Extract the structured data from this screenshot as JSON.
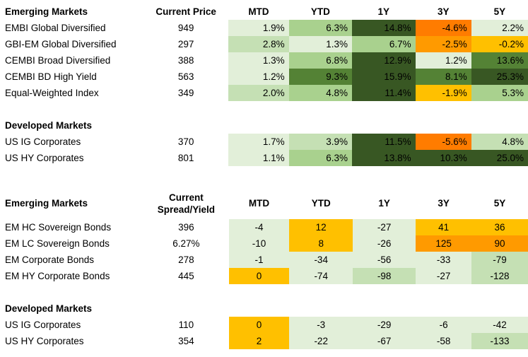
{
  "colors": {
    "pale_green": "#e2efd9",
    "light_green": "#c5e0b4",
    "mid_green": "#a9d18e",
    "dark_green": "#548235",
    "darkest_green": "#385723",
    "yellow": "#ffc000",
    "orange": "#ff7c00"
  },
  "returns": {
    "headers": [
      "Emerging Markets",
      "Current Price",
      "MTD",
      "YTD",
      "1Y",
      "3Y",
      "5Y"
    ],
    "em_rows": [
      {
        "name": "EMBI Global Diversified",
        "value": "949",
        "cells": [
          {
            "v": "1.9%",
            "c": "#e2efd9"
          },
          {
            "v": "6.3%",
            "c": "#a9d18e"
          },
          {
            "v": "14.8%",
            "c": "#385723"
          },
          {
            "v": "-4.6%",
            "c": "#ff7c00"
          },
          {
            "v": "2.2%",
            "c": "#e2efd9"
          }
        ]
      },
      {
        "name": "GBI-EM Global Diversified",
        "value": "297",
        "cells": [
          {
            "v": "2.8%",
            "c": "#c5e0b4"
          },
          {
            "v": "1.3%",
            "c": "#e2efd9"
          },
          {
            "v": "6.7%",
            "c": "#a9d18e"
          },
          {
            "v": "-2.5%",
            "c": "#ff9a00"
          },
          {
            "v": "-0.2%",
            "c": "#ffc000"
          }
        ]
      },
      {
        "name": "CEMBI Broad Diversified",
        "value": "388",
        "cells": [
          {
            "v": "1.3%",
            "c": "#e2efd9"
          },
          {
            "v": "6.8%",
            "c": "#a9d18e"
          },
          {
            "v": "12.9%",
            "c": "#385723"
          },
          {
            "v": "1.2%",
            "c": "#e2efd9"
          },
          {
            "v": "13.6%",
            "c": "#548235"
          }
        ]
      },
      {
        "name": "CEMBI BD High Yield",
        "value": "563",
        "cells": [
          {
            "v": "1.2%",
            "c": "#e2efd9"
          },
          {
            "v": "9.3%",
            "c": "#548235"
          },
          {
            "v": "15.9%",
            "c": "#385723"
          },
          {
            "v": "8.1%",
            "c": "#548235"
          },
          {
            "v": "25.3%",
            "c": "#385723"
          }
        ]
      },
      {
        "name": "Equal-Weighted Index",
        "value": "349",
        "cells": [
          {
            "v": "2.0%",
            "c": "#c5e0b4"
          },
          {
            "v": "4.8%",
            "c": "#a9d18e"
          },
          {
            "v": "11.4%",
            "c": "#385723"
          },
          {
            "v": "-1.9%",
            "c": "#ffc000"
          },
          {
            "v": "5.3%",
            "c": "#a9d18e"
          }
        ]
      }
    ],
    "dm_header": "Developed Markets",
    "dm_rows": [
      {
        "name": "US IG Corporates",
        "value": "370",
        "cells": [
          {
            "v": "1.7%",
            "c": "#e2efd9"
          },
          {
            "v": "3.9%",
            "c": "#c5e0b4"
          },
          {
            "v": "11.5%",
            "c": "#385723"
          },
          {
            "v": "-5.6%",
            "c": "#ff7c00"
          },
          {
            "v": "4.8%",
            "c": "#c5e0b4"
          }
        ]
      },
      {
        "name": "US HY Corporates",
        "value": "801",
        "cells": [
          {
            "v": "1.1%",
            "c": "#e2efd9"
          },
          {
            "v": "6.3%",
            "c": "#a9d18e"
          },
          {
            "v": "13.8%",
            "c": "#385723"
          },
          {
            "v": "10.3%",
            "c": "#385723"
          },
          {
            "v": "25.0%",
            "c": "#385723"
          }
        ]
      }
    ]
  },
  "spreads": {
    "headers": [
      "Emerging Markets",
      "Current\nSpread/Yield",
      "MTD",
      "YTD",
      "1Y",
      "3Y",
      "5Y"
    ],
    "header_col2_line1": "Current",
    "header_col2_line2": "Spread/Yield",
    "em_rows": [
      {
        "name": "EM HC Sovereign Bonds",
        "value": "396",
        "cells": [
          {
            "v": "-4",
            "c": "#e2efd9"
          },
          {
            "v": "12",
            "c": "#ffc000"
          },
          {
            "v": "-27",
            "c": "#e2efd9"
          },
          {
            "v": "41",
            "c": "#ffc000"
          },
          {
            "v": "36",
            "c": "#ffc000"
          }
        ]
      },
      {
        "name": "EM LC Sovereign Bonds",
        "value": "6.27%",
        "cells": [
          {
            "v": "-10",
            "c": "#e2efd9"
          },
          {
            "v": "8",
            "c": "#ffc000"
          },
          {
            "v": "-26",
            "c": "#e2efd9"
          },
          {
            "v": "125",
            "c": "#ff9a00"
          },
          {
            "v": "90",
            "c": "#ff9a00"
          }
        ]
      },
      {
        "name": "EM Corporate Bonds",
        "value": "278",
        "cells": [
          {
            "v": "-1",
            "c": "#e2efd9"
          },
          {
            "v": "-34",
            "c": "#e2efd9"
          },
          {
            "v": "-56",
            "c": "#e2efd9"
          },
          {
            "v": "-33",
            "c": "#e2efd9"
          },
          {
            "v": "-79",
            "c": "#c5e0b4"
          }
        ]
      },
      {
        "name": "EM HY Corporate Bonds",
        "value": "445",
        "cells": [
          {
            "v": "0",
            "c": "#ffc000"
          },
          {
            "v": "-74",
            "c": "#e2efd9"
          },
          {
            "v": "-98",
            "c": "#c5e0b4"
          },
          {
            "v": "-27",
            "c": "#e2efd9"
          },
          {
            "v": "-128",
            "c": "#c5e0b4"
          }
        ]
      }
    ],
    "dm_header": "Developed Markets",
    "dm_rows": [
      {
        "name": "US IG Corporates",
        "value": "110",
        "cells": [
          {
            "v": "0",
            "c": "#ffc000"
          },
          {
            "v": "-3",
            "c": "#e2efd9"
          },
          {
            "v": "-29",
            "c": "#e2efd9"
          },
          {
            "v": "-6",
            "c": "#e2efd9"
          },
          {
            "v": "-42",
            "c": "#e2efd9"
          }
        ]
      },
      {
        "name": "US HY Corporates",
        "value": "354",
        "cells": [
          {
            "v": "2",
            "c": "#ffc000"
          },
          {
            "v": "-22",
            "c": "#e2efd9"
          },
          {
            "v": "-67",
            "c": "#e2efd9"
          },
          {
            "v": "-58",
            "c": "#e2efd9"
          },
          {
            "v": "-133",
            "c": "#c5e0b4"
          }
        ]
      }
    ]
  }
}
